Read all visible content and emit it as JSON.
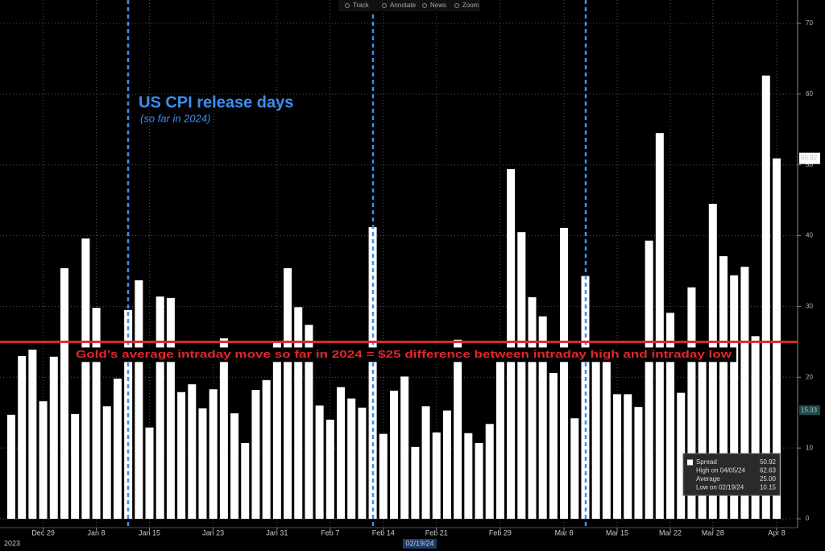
{
  "chart_data": {
    "type": "bar",
    "toolbar": [
      "Track",
      "Annotate",
      "News",
      "Zoom"
    ],
    "annotation_title": "US CPI release days",
    "annotation_subtitle": "(so far in 2024)",
    "categories": [
      null,
      null,
      null,
      "Dec 29",
      null,
      null,
      null,
      null,
      "Jan 8",
      null,
      null,
      null,
      null,
      "Jan 15",
      null,
      null,
      null,
      null,
      null,
      "Jan 23",
      null,
      null,
      null,
      null,
      null,
      "Jan 31",
      null,
      null,
      null,
      null,
      "Feb 7",
      null,
      null,
      null,
      null,
      "Feb 14",
      null,
      null,
      null,
      null,
      "Feb 21",
      null,
      null,
      null,
      null,
      null,
      "Feb 29",
      null,
      null,
      null,
      null,
      null,
      "Mar 8",
      null,
      null,
      null,
      null,
      "Mar 15",
      null,
      null,
      null,
      null,
      "Mar 22",
      null,
      null,
      null,
      "Mar 28",
      null,
      null,
      null,
      null,
      null,
      "Apr 8"
    ],
    "series": [
      {
        "name": "Spread",
        "color": "#ffffff",
        "values": [
          14.7,
          23.0,
          23.9,
          16.6,
          22.9,
          35.4,
          14.8,
          39.6,
          29.8,
          15.9,
          19.8,
          29.5,
          33.7,
          12.9,
          31.4,
          31.2,
          17.9,
          19.0,
          15.6,
          18.3,
          25.5,
          14.9,
          10.7,
          18.2,
          19.6,
          24.9,
          35.4,
          29.9,
          27.4,
          16.0,
          14.0,
          18.6,
          17.0,
          15.7,
          41.2,
          12.0,
          18.1,
          20.1,
          10.15,
          15.9,
          12.2,
          15.3,
          25.3,
          12.1,
          10.7,
          13.4,
          22.5,
          49.4,
          40.5,
          31.3,
          28.6,
          20.6,
          41.1,
          14.2,
          34.3,
          22.6,
          22.6,
          17.6,
          17.6,
          15.8,
          39.3,
          54.5,
          29.1,
          17.8,
          32.7,
          22.6,
          44.5,
          37.1,
          34.4,
          35.6,
          25.8,
          62.63,
          50.92
        ]
      }
    ],
    "ylim": [
      -1.25,
      73.3
    ],
    "yticks": [
      0,
      10,
      20,
      30,
      40,
      50,
      60,
      70
    ],
    "grid": true,
    "average_line": {
      "value": 25,
      "label": "Gold's average intraday move so far in 2024 = $25 difference between intraday high and intraday low",
      "color": "#e3262e"
    },
    "last_value": 50.92,
    "crosshair_value": 15.33,
    "crosshair_date": "02/19/24",
    "year_label": "2023",
    "legend": [
      {
        "label": "Spread",
        "value": 50.92
      },
      {
        "label": "High on 04/05/24",
        "value": 62.63
      },
      {
        "label": "Average",
        "value": 25,
        "value_label": "25.00"
      },
      {
        "label": "Low on 02/19/24",
        "value": 10.15
      }
    ]
  }
}
